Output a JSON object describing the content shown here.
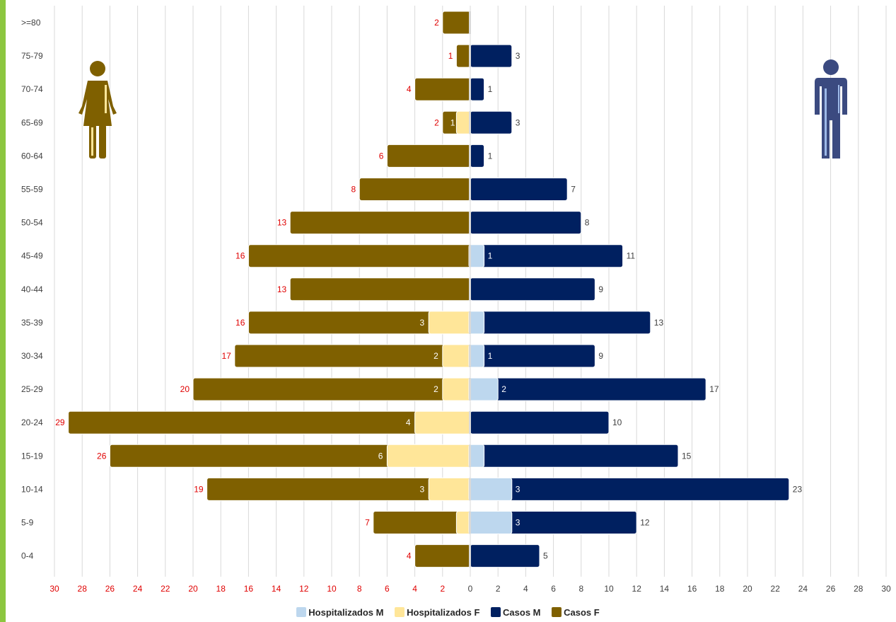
{
  "chart_data": {
    "type": "bar",
    "orientation": "horizontal-pyramid",
    "categories": [
      ">=80",
      "75-79",
      "70-74",
      "65-69",
      "60-64",
      "55-59",
      "50-54",
      "45-49",
      "40-44",
      "35-39",
      "30-34",
      "25-29",
      "20-24",
      "15-19",
      "10-14",
      "5-9",
      "0-4"
    ],
    "series": [
      {
        "name": "Casos F",
        "side": "left",
        "color": "#7f6000",
        "values": [
          2,
          1,
          4,
          2,
          6,
          8,
          13,
          16,
          13,
          16,
          17,
          20,
          29,
          26,
          19,
          7,
          4
        ]
      },
      {
        "name": "Hospitalizados F",
        "side": "left",
        "color": "#ffe699",
        "values": [
          0,
          0,
          0,
          1,
          0,
          0,
          0,
          0,
          0,
          3,
          2,
          2,
          4,
          6,
          3,
          1,
          0
        ],
        "labels": [
          null,
          null,
          null,
          "1",
          null,
          null,
          null,
          null,
          null,
          "3",
          "2",
          "2",
          "4",
          "6",
          "3",
          null,
          null
        ]
      },
      {
        "name": "Casos M",
        "side": "right",
        "color": "#002060",
        "values": [
          0,
          3,
          1,
          3,
          1,
          7,
          8,
          11,
          9,
          13,
          9,
          17,
          10,
          15,
          23,
          12,
          5
        ]
      },
      {
        "name": "Hospitalizados M",
        "side": "right",
        "color": "#bdd7ee",
        "values": [
          0,
          0,
          0,
          0,
          0,
          0,
          0,
          1,
          0,
          1,
          1,
          2,
          0,
          1,
          3,
          3,
          0
        ],
        "labels": [
          null,
          null,
          null,
          null,
          null,
          null,
          null,
          "1",
          null,
          null,
          "1",
          "2",
          null,
          null,
          "3",
          "3",
          null
        ]
      }
    ],
    "casos_m_labels": [
      null,
      "3",
      "1",
      "3",
      "1",
      "7",
      "8",
      "11",
      "9",
      "13",
      "9",
      "17",
      "10",
      "15",
      "23",
      "12",
      "5"
    ],
    "xlim": [
      -30,
      30
    ],
    "x_ticks": [
      30,
      28,
      26,
      24,
      22,
      20,
      18,
      16,
      14,
      12,
      10,
      8,
      6,
      4,
      2,
      0,
      2,
      4,
      6,
      8,
      10,
      12,
      14,
      16,
      18,
      20,
      22,
      24,
      26,
      28,
      30
    ],
    "grid": true,
    "legend_position": "bottom",
    "legend_order": [
      "Hospitalizados M",
      "Hospitalizados F",
      "Casos M",
      "Casos F"
    ],
    "icons": {
      "female": "female-figure-icon",
      "male": "male-figure-icon"
    }
  }
}
